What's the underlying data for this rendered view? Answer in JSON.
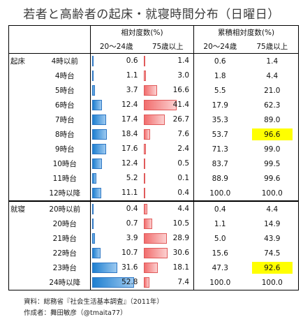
{
  "title": "若者と高齢者の起床・就寝時間分布（日曜日）",
  "headers": {
    "relative": "相対度数(%)",
    "cumulative": "累積相対度数(%)",
    "young": "20～24歳",
    "old": "75歳以上"
  },
  "groups": [
    {
      "label": "起床",
      "rows": [
        {
          "hour": "4時以前",
          "young": 0.6,
          "old": 1.4,
          "cum_young": "0.6",
          "cum_old": "1.4",
          "highlight_old": false
        },
        {
          "hour": "4時台",
          "young": 1.1,
          "old": 3.0,
          "cum_young": "1.8",
          "cum_old": "4.4",
          "highlight_old": false
        },
        {
          "hour": "5時台",
          "young": 3.7,
          "old": 16.6,
          "cum_young": "5.5",
          "cum_old": "21.0",
          "highlight_old": false
        },
        {
          "hour": "6時台",
          "young": 12.4,
          "old": 41.4,
          "cum_young": "17.9",
          "cum_old": "62.3",
          "highlight_old": false
        },
        {
          "hour": "7時台",
          "young": 17.4,
          "old": 26.7,
          "cum_young": "35.3",
          "cum_old": "89.0",
          "highlight_old": false
        },
        {
          "hour": "8時台",
          "young": 18.4,
          "old": 7.6,
          "cum_young": "53.7",
          "cum_old": "96.6",
          "highlight_old": true
        },
        {
          "hour": "9時台",
          "young": 17.6,
          "old": 2.4,
          "cum_young": "71.3",
          "cum_old": "99.0",
          "highlight_old": false
        },
        {
          "hour": "10時台",
          "young": 12.4,
          "old": 0.5,
          "cum_young": "83.7",
          "cum_old": "99.5",
          "highlight_old": false
        },
        {
          "hour": "11時台",
          "young": 5.2,
          "old": 0.1,
          "cum_young": "88.9",
          "cum_old": "99.6",
          "highlight_old": false
        },
        {
          "hour": "12時以降",
          "young": 11.1,
          "old": 0.4,
          "cum_young": "100.0",
          "cum_old": "100.0",
          "highlight_old": false
        }
      ]
    },
    {
      "label": "就寝",
      "rows": [
        {
          "hour": "20時以前",
          "young": 0.4,
          "old": 4.4,
          "cum_young": "0.4",
          "cum_old": "4.4",
          "highlight_old": false
        },
        {
          "hour": "20時台",
          "young": 0.7,
          "old": 10.5,
          "cum_young": "1.1",
          "cum_old": "14.9",
          "highlight_old": false
        },
        {
          "hour": "21時台",
          "young": 3.9,
          "old": 28.9,
          "cum_young": "5.0",
          "cum_old": "43.9",
          "highlight_old": false
        },
        {
          "hour": "22時台",
          "young": 10.7,
          "old": 30.6,
          "cum_young": "15.6",
          "cum_old": "74.5",
          "highlight_old": false
        },
        {
          "hour": "23時台",
          "young": 31.6,
          "old": 18.1,
          "cum_young": "47.3",
          "cum_old": "92.6",
          "highlight_old": true
        },
        {
          "hour": "24時以降",
          "young": 52.8,
          "old": 7.4,
          "cum_young": "100.0",
          "cum_old": "100.0",
          "highlight_old": false
        }
      ]
    }
  ],
  "footer": {
    "source": "資料：総務省『社会生活基本調査』（2011年）",
    "author": "作成者：舞田敏彦（@tmaita77）"
  },
  "colors": {
    "young_bar": "#1e7fd0",
    "old_bar": "#f16d6d",
    "highlight": "#ffff00"
  }
}
